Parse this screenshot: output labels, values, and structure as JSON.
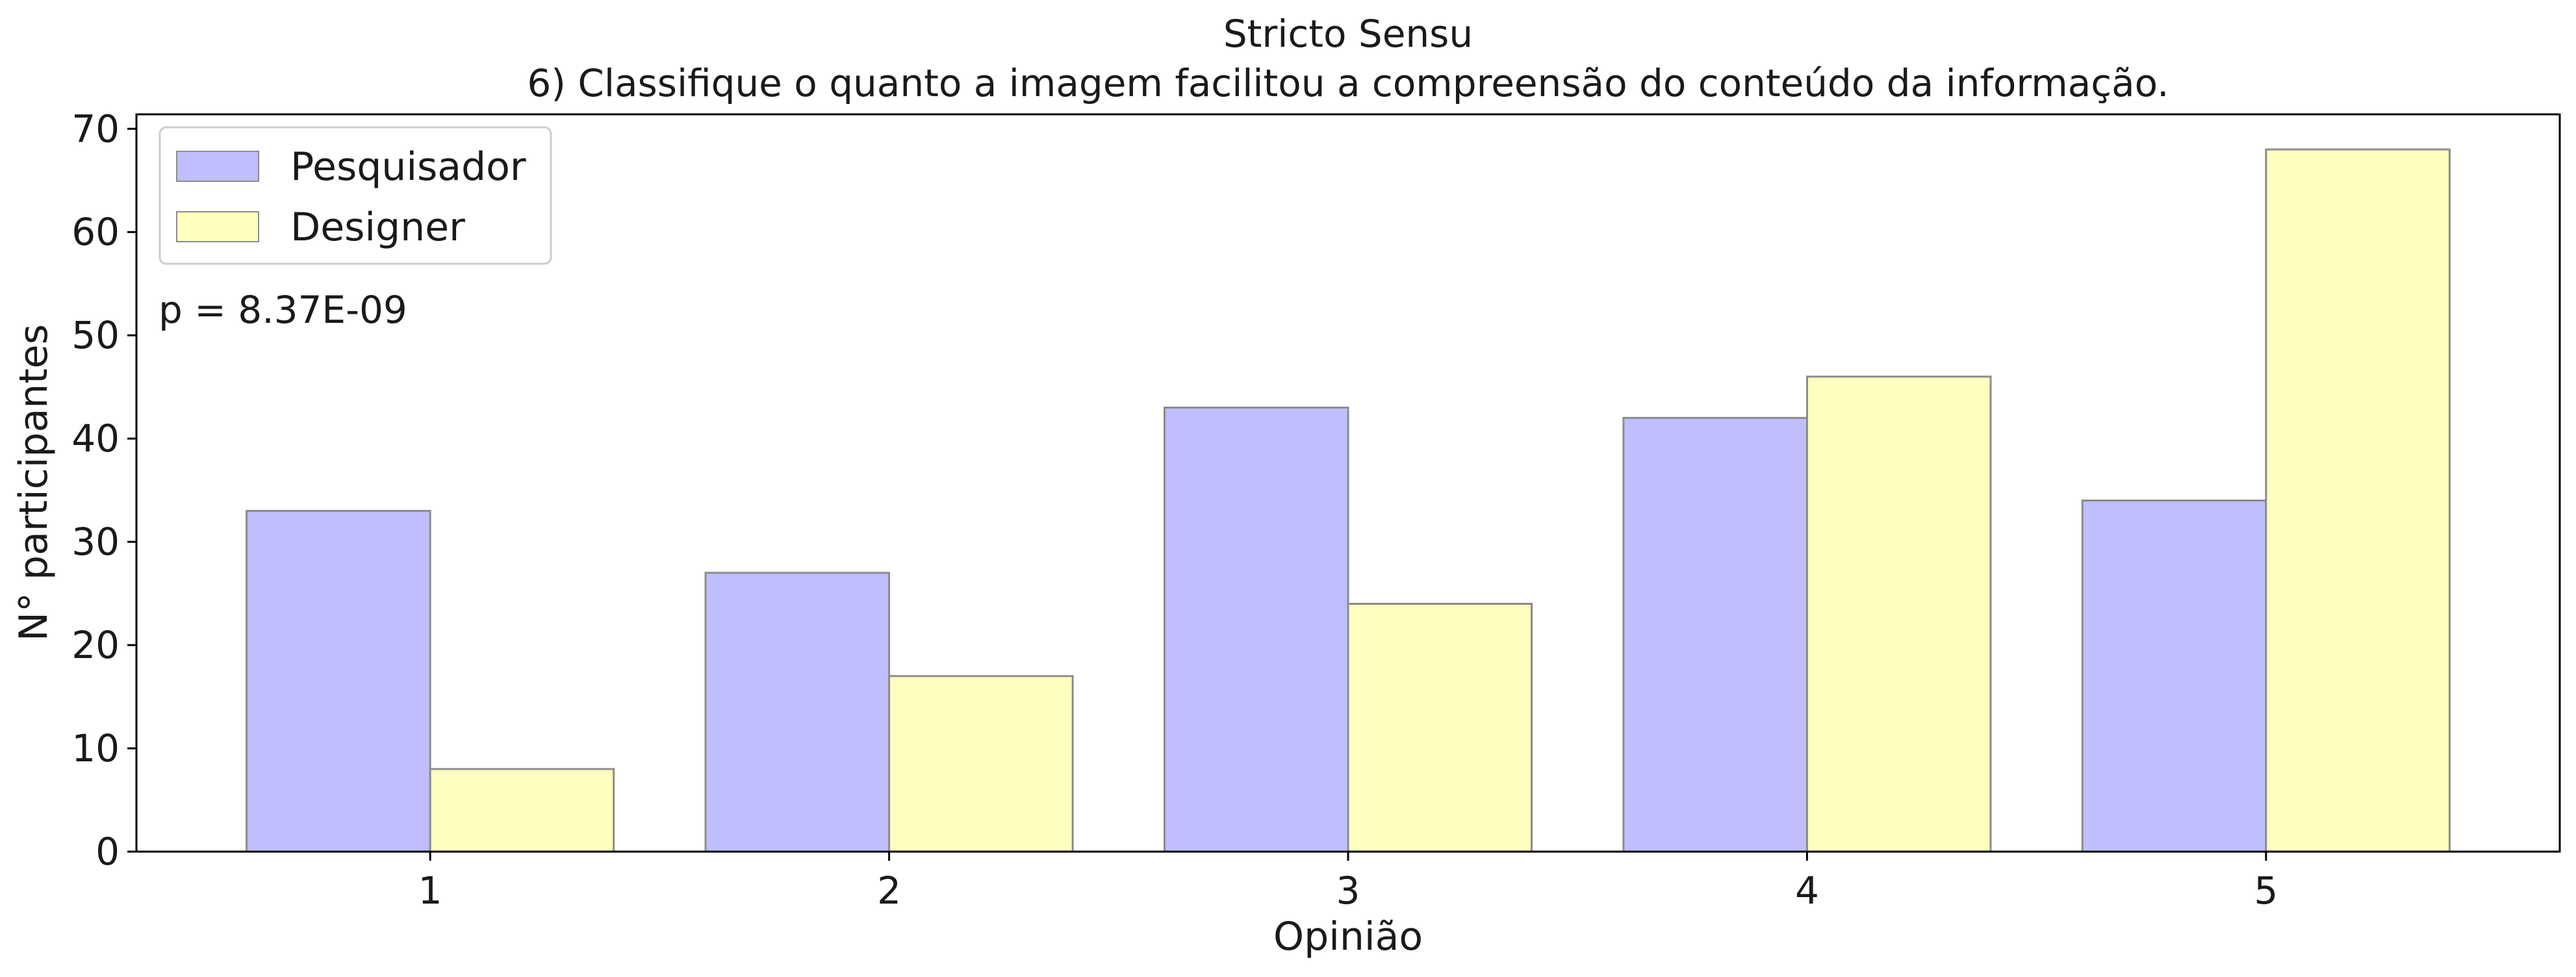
{
  "chart_data": {
    "type": "bar",
    "title": "Stricto Sensu",
    "subtitle": "6) Classifique o quanto a imagem facilitou a compreensão do conteúdo da informação.",
    "xlabel": "Opinião",
    "ylabel": "N° participantes",
    "categories": [
      "1",
      "2",
      "3",
      "4",
      "5"
    ],
    "series": [
      {
        "name": "Pesquisador",
        "values": [
          33,
          27,
          43,
          42,
          34
        ],
        "color": "#bfbfff"
      },
      {
        "name": "Designer",
        "values": [
          8,
          17,
          24,
          46,
          68
        ],
        "color": "#ffffbf"
      }
    ],
    "ylim": [
      0,
      71.4
    ],
    "yticks": [
      0,
      10,
      20,
      30,
      40,
      50,
      60,
      70
    ],
    "annotation": "p = 8.37E-09",
    "legend_position": "top-left",
    "grid": false,
    "colors": {
      "bar_edge": "#8c8c8c",
      "axes": "#000000"
    }
  }
}
